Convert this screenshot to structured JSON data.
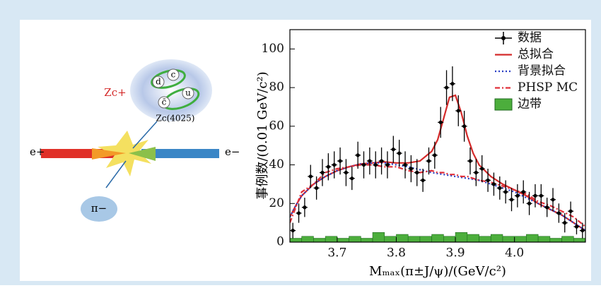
{
  "chart_data": {
    "type": "scatter",
    "ylabel": "事例数/(0.01 GeV/c²)",
    "xlabel": "Mₘₐₓ(π±J/ψ)/(GeV/c²)",
    "xlim": [
      3.62,
      4.12
    ],
    "ylim": [
      0,
      110
    ],
    "xticks": [
      3.7,
      3.8,
      3.9,
      {
        "value": 4,
        "label": "4.0"
      }
    ],
    "yticks": [
      0,
      20,
      40,
      60,
      80,
      100
    ],
    "legend": "upper right",
    "series": [
      {
        "name": "数据",
        "type": "errorbar",
        "color": "#000000",
        "x": [
          3.625,
          3.635,
          3.645,
          3.655,
          3.665,
          3.675,
          3.685,
          3.695,
          3.705,
          3.715,
          3.725,
          3.735,
          3.745,
          3.755,
          3.765,
          3.775,
          3.785,
          3.795,
          3.805,
          3.815,
          3.825,
          3.835,
          3.845,
          3.855,
          3.865,
          3.875,
          3.885,
          3.895,
          3.905,
          3.915,
          3.925,
          3.935,
          3.945,
          3.955,
          3.965,
          3.975,
          3.985,
          3.995,
          4.005,
          4.015,
          4.025,
          4.035,
          4.045,
          4.055,
          4.065,
          4.075,
          4.085,
          4.095,
          4.105,
          4.115
        ],
        "values": [
          6,
          15,
          18,
          34,
          28,
          36,
          39,
          40,
          42,
          36,
          33,
          45,
          40,
          42,
          40,
          42,
          40,
          48,
          46,
          40,
          38,
          36,
          32,
          42,
          45,
          62,
          80,
          82,
          68,
          60,
          42,
          36,
          38,
          32,
          30,
          28,
          26,
          22,
          24,
          26,
          20,
          24,
          24,
          18,
          22,
          15,
          10,
          16,
          8,
          6
        ],
        "errors": [
          4,
          5,
          5,
          6,
          6,
          7,
          7,
          7,
          7,
          7,
          6,
          7,
          7,
          7,
          7,
          7,
          7,
          7,
          7,
          7,
          7,
          7,
          6,
          7,
          7,
          8,
          9,
          9,
          8,
          8,
          7,
          7,
          7,
          6,
          6,
          6,
          6,
          6,
          6,
          6,
          6,
          6,
          6,
          5,
          6,
          5,
          5,
          5,
          4,
          4
        ]
      },
      {
        "name": "总拟合",
        "type": "line",
        "color": "#d42a2a",
        "dash": "none",
        "x": [
          3.62,
          3.63,
          3.64,
          3.66,
          3.68,
          3.7,
          3.72,
          3.74,
          3.76,
          3.78,
          3.8,
          3.82,
          3.84,
          3.86,
          3.87,
          3.88,
          3.89,
          3.9,
          3.91,
          3.92,
          3.93,
          3.94,
          3.96,
          3.98,
          4.0,
          4.02,
          4.04,
          4.06,
          4.08,
          4.1,
          4.12
        ],
        "values": [
          13,
          19,
          24,
          30,
          34,
          37,
          39,
          40.5,
          41,
          41.5,
          41,
          41,
          42,
          47,
          53,
          64,
          75,
          76,
          67,
          55,
          46,
          40,
          34,
          30,
          27,
          24,
          20,
          17,
          14,
          10,
          6
        ]
      },
      {
        "name": "背景拟合",
        "type": "line",
        "color": "#2a3fc4",
        "dash": "2 3",
        "x": [
          3.62,
          3.63,
          3.64,
          3.66,
          3.68,
          3.7,
          3.72,
          3.74,
          3.76,
          3.78,
          3.8,
          3.82,
          3.84,
          3.86,
          3.87,
          3.88,
          3.89,
          3.9,
          3.91,
          3.92,
          3.93,
          3.94,
          3.96,
          3.98,
          4.0,
          4.02,
          4.04,
          4.06,
          4.08,
          4.1,
          4.12
        ],
        "values": [
          13,
          19,
          24,
          30,
          34,
          37,
          39,
          40.5,
          41,
          41,
          40,
          39,
          37.5,
          36,
          35.5,
          35,
          34.5,
          34,
          33.5,
          33,
          32.5,
          32,
          30,
          28,
          26,
          23,
          20,
          17,
          14,
          10,
          6
        ]
      },
      {
        "name": "PHSP MC",
        "type": "line",
        "color": "#e0303a",
        "dash": "7 3 2 3",
        "x": [
          3.62,
          3.63,
          3.64,
          3.66,
          3.68,
          3.7,
          3.72,
          3.74,
          3.76,
          3.78,
          3.8,
          3.82,
          3.84,
          3.86,
          3.87,
          3.88,
          3.89,
          3.9,
          3.91,
          3.92,
          3.93,
          3.94,
          3.96,
          3.98,
          4.0,
          4.02,
          4.04,
          4.06,
          4.08,
          4.1,
          4.12
        ],
        "values": [
          10,
          18,
          26,
          30,
          36,
          38,
          39,
          40,
          40,
          39,
          39,
          37,
          36,
          37,
          36,
          36,
          35,
          35,
          34,
          34,
          33,
          32,
          31,
          29,
          27,
          25,
          21,
          19,
          16,
          13,
          8
        ]
      },
      {
        "name": "边带",
        "type": "histogram",
        "color": "#4cae3c",
        "bins": [
          3.62,
          3.64,
          3.66,
          3.68,
          3.7,
          3.72,
          3.74,
          3.76,
          3.78,
          3.8,
          3.82,
          3.84,
          3.86,
          3.88,
          3.9,
          3.92,
          3.94,
          3.96,
          3.98,
          4.0,
          4.02,
          4.04,
          4.06,
          4.08,
          4.1,
          4.12
        ],
        "values": [
          2,
          3,
          2,
          3,
          2,
          3,
          2,
          5,
          3,
          4,
          3,
          3,
          4,
          3,
          5,
          4,
          3,
          4,
          3,
          3,
          4,
          3,
          2,
          3,
          2
        ]
      }
    ]
  },
  "diagram": {
    "zc_plus": "Zc+",
    "zc_name": "Zc(4025)",
    "quarks": [
      "d",
      "c",
      "c̄",
      "u"
    ],
    "e_plus": "e+",
    "e_minus": "e−",
    "pion": "π−"
  }
}
